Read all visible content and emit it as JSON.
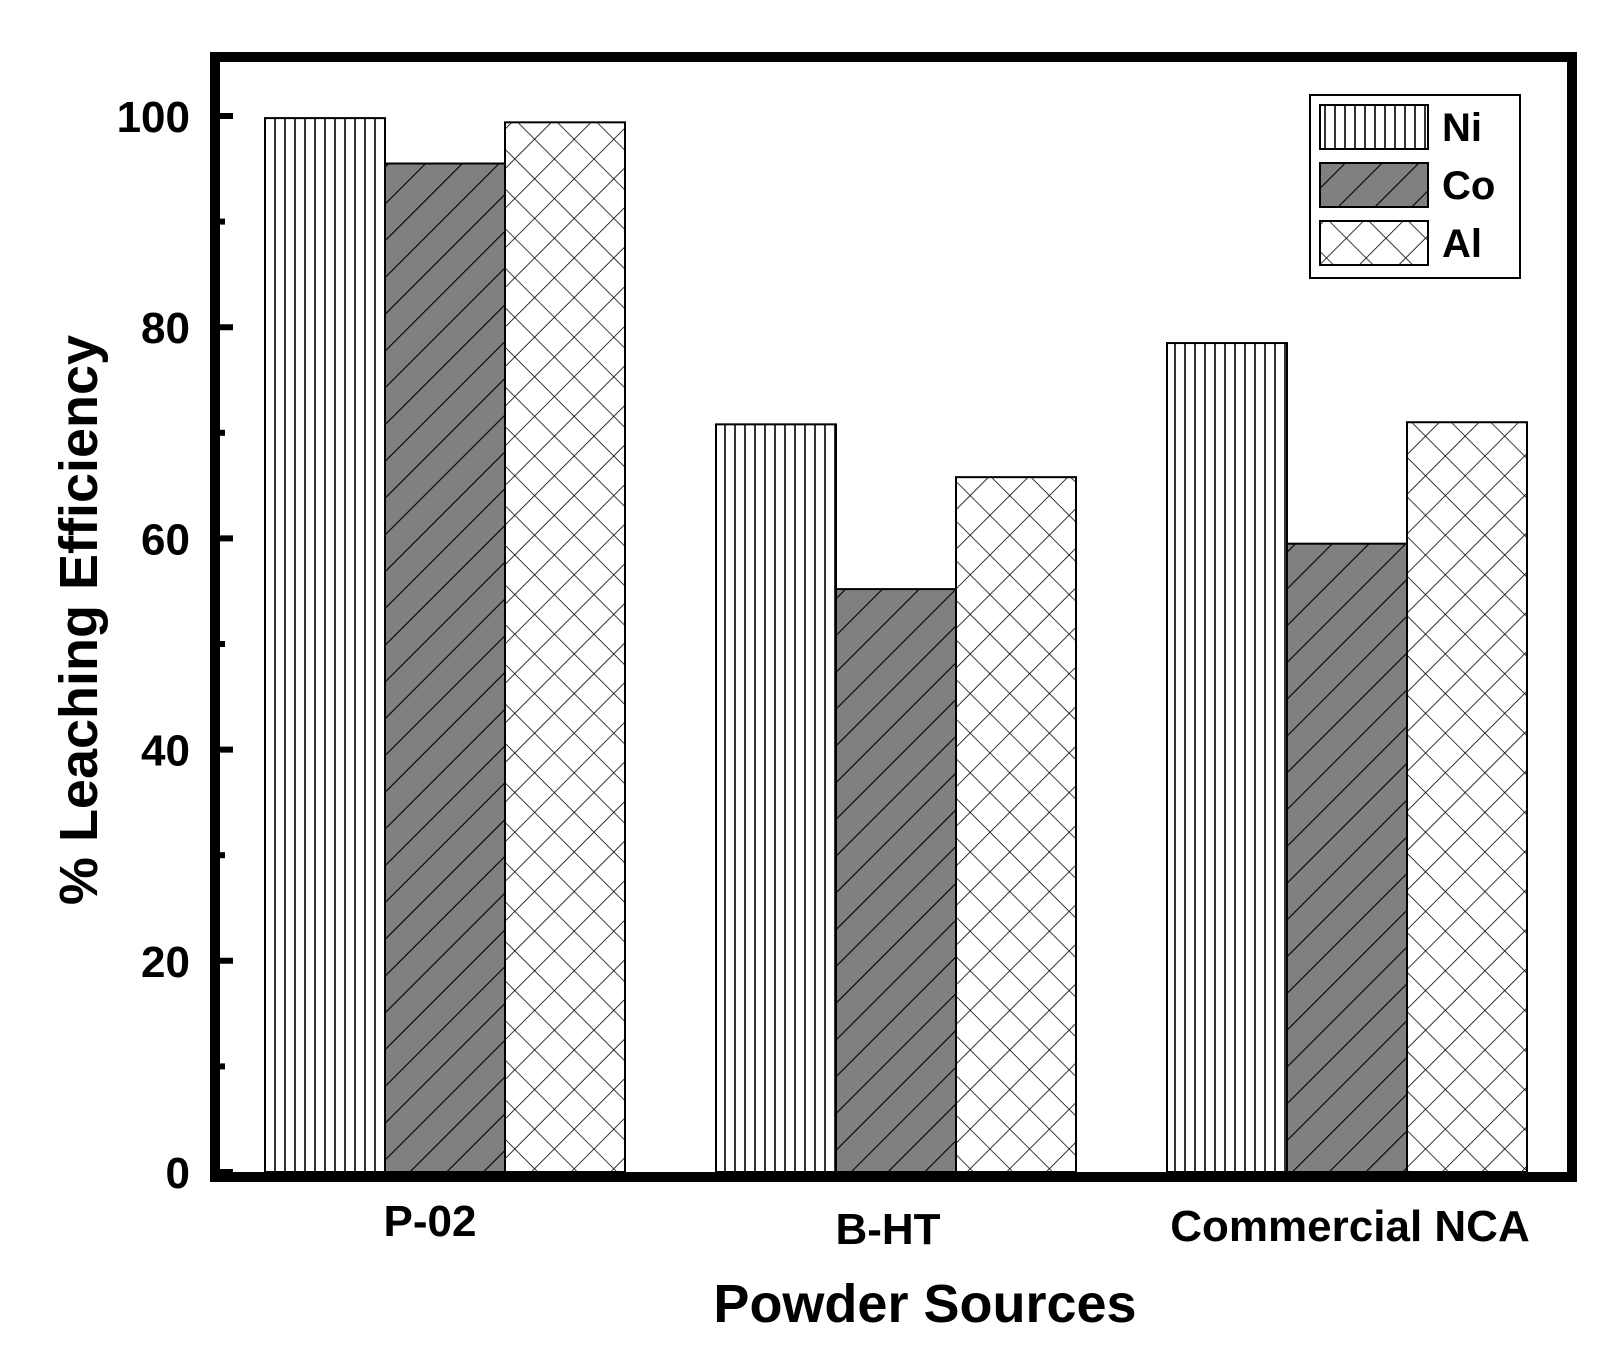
{
  "chart_data": {
    "type": "bar",
    "categories": [
      "P-02",
      "B-HT",
      "Commercial NCA"
    ],
    "series": [
      {
        "name": "Ni",
        "values": [
          99.8,
          70.8,
          78.5
        ],
        "pattern": "vertical-lines",
        "fill": "#ffffff"
      },
      {
        "name": "Co",
        "values": [
          95.5,
          55.2,
          59.5
        ],
        "pattern": "diagonal-lines",
        "fill": "#808080"
      },
      {
        "name": "Al",
        "values": [
          99.4,
          65.8,
          71.0
        ],
        "pattern": "crosshatch",
        "fill": "#ffffff"
      }
    ],
    "xlabel": "Powder Sources",
    "ylabel": "% Leaching Efficiency",
    "ylim": [
      0,
      105
    ],
    "yticks": [
      0,
      20,
      40,
      60,
      80,
      100
    ],
    "ytick_labels": [
      "0",
      "20",
      "40",
      "60",
      "80",
      "100"
    ],
    "legend_position": "top-right",
    "grid": false
  }
}
